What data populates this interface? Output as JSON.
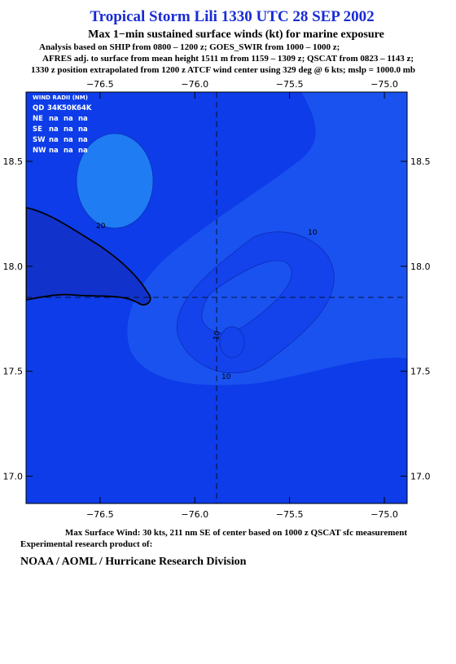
{
  "header": {
    "title": "Tropical Storm Lili 1330 UTC 28 SEP 2002",
    "subtitle": "Max 1−min sustained surface winds (kt) for marine exposure",
    "notes": [
      "Analysis based on  SHIP from 0800 – 1200 z;  GOES_SWIR from 1000 – 1000 z;",
      "AFRES adj. to surface from mean height 1511 m from 1159 – 1309 z;  QSCAT from 0823 – 1143 z;",
      "1330 z position extrapolated from 1200 z ATCF wind center using 329 deg @ 6 kts; mslp = 1000.0 mb"
    ]
  },
  "map": {
    "xlim": [
      -76.89,
      -74.88
    ],
    "ylim": [
      16.87,
      18.83
    ],
    "xticks": [
      {
        "value": -76.5,
        "label": "−76.5"
      },
      {
        "value": -76.0,
        "label": "−76.0"
      },
      {
        "value": -75.5,
        "label": "−75.5"
      },
      {
        "value": -75.0,
        "label": "−75.0"
      }
    ],
    "yticks": [
      {
        "value": 17.0,
        "label": "17.0"
      },
      17.5,
      {
        "value": 18.0,
        "label": "18.0"
      },
      18.5
    ],
    "contour_labels": [
      "20",
      "10",
      "10",
      "10"
    ],
    "wind_radii": {
      "title": "WIND RADII (NM)",
      "columns": [
        "QD",
        "34K",
        "50K",
        "64K"
      ],
      "rows": [
        [
          "NE",
          "na",
          "na",
          "na"
        ],
        [
          "SE",
          "na",
          "na",
          "na"
        ],
        [
          "SW",
          "na",
          "na",
          "na"
        ],
        [
          "NW",
          "na",
          "na",
          "na"
        ]
      ]
    }
  },
  "footer": {
    "max_wind": "Max Surface Wind: 30 kts, 211 nm SE of center based on 1000 z QSCAT sfc measurement",
    "product": "Experimental research product of:",
    "org": "NOAA / AOML / Hurricane Research Division"
  }
}
